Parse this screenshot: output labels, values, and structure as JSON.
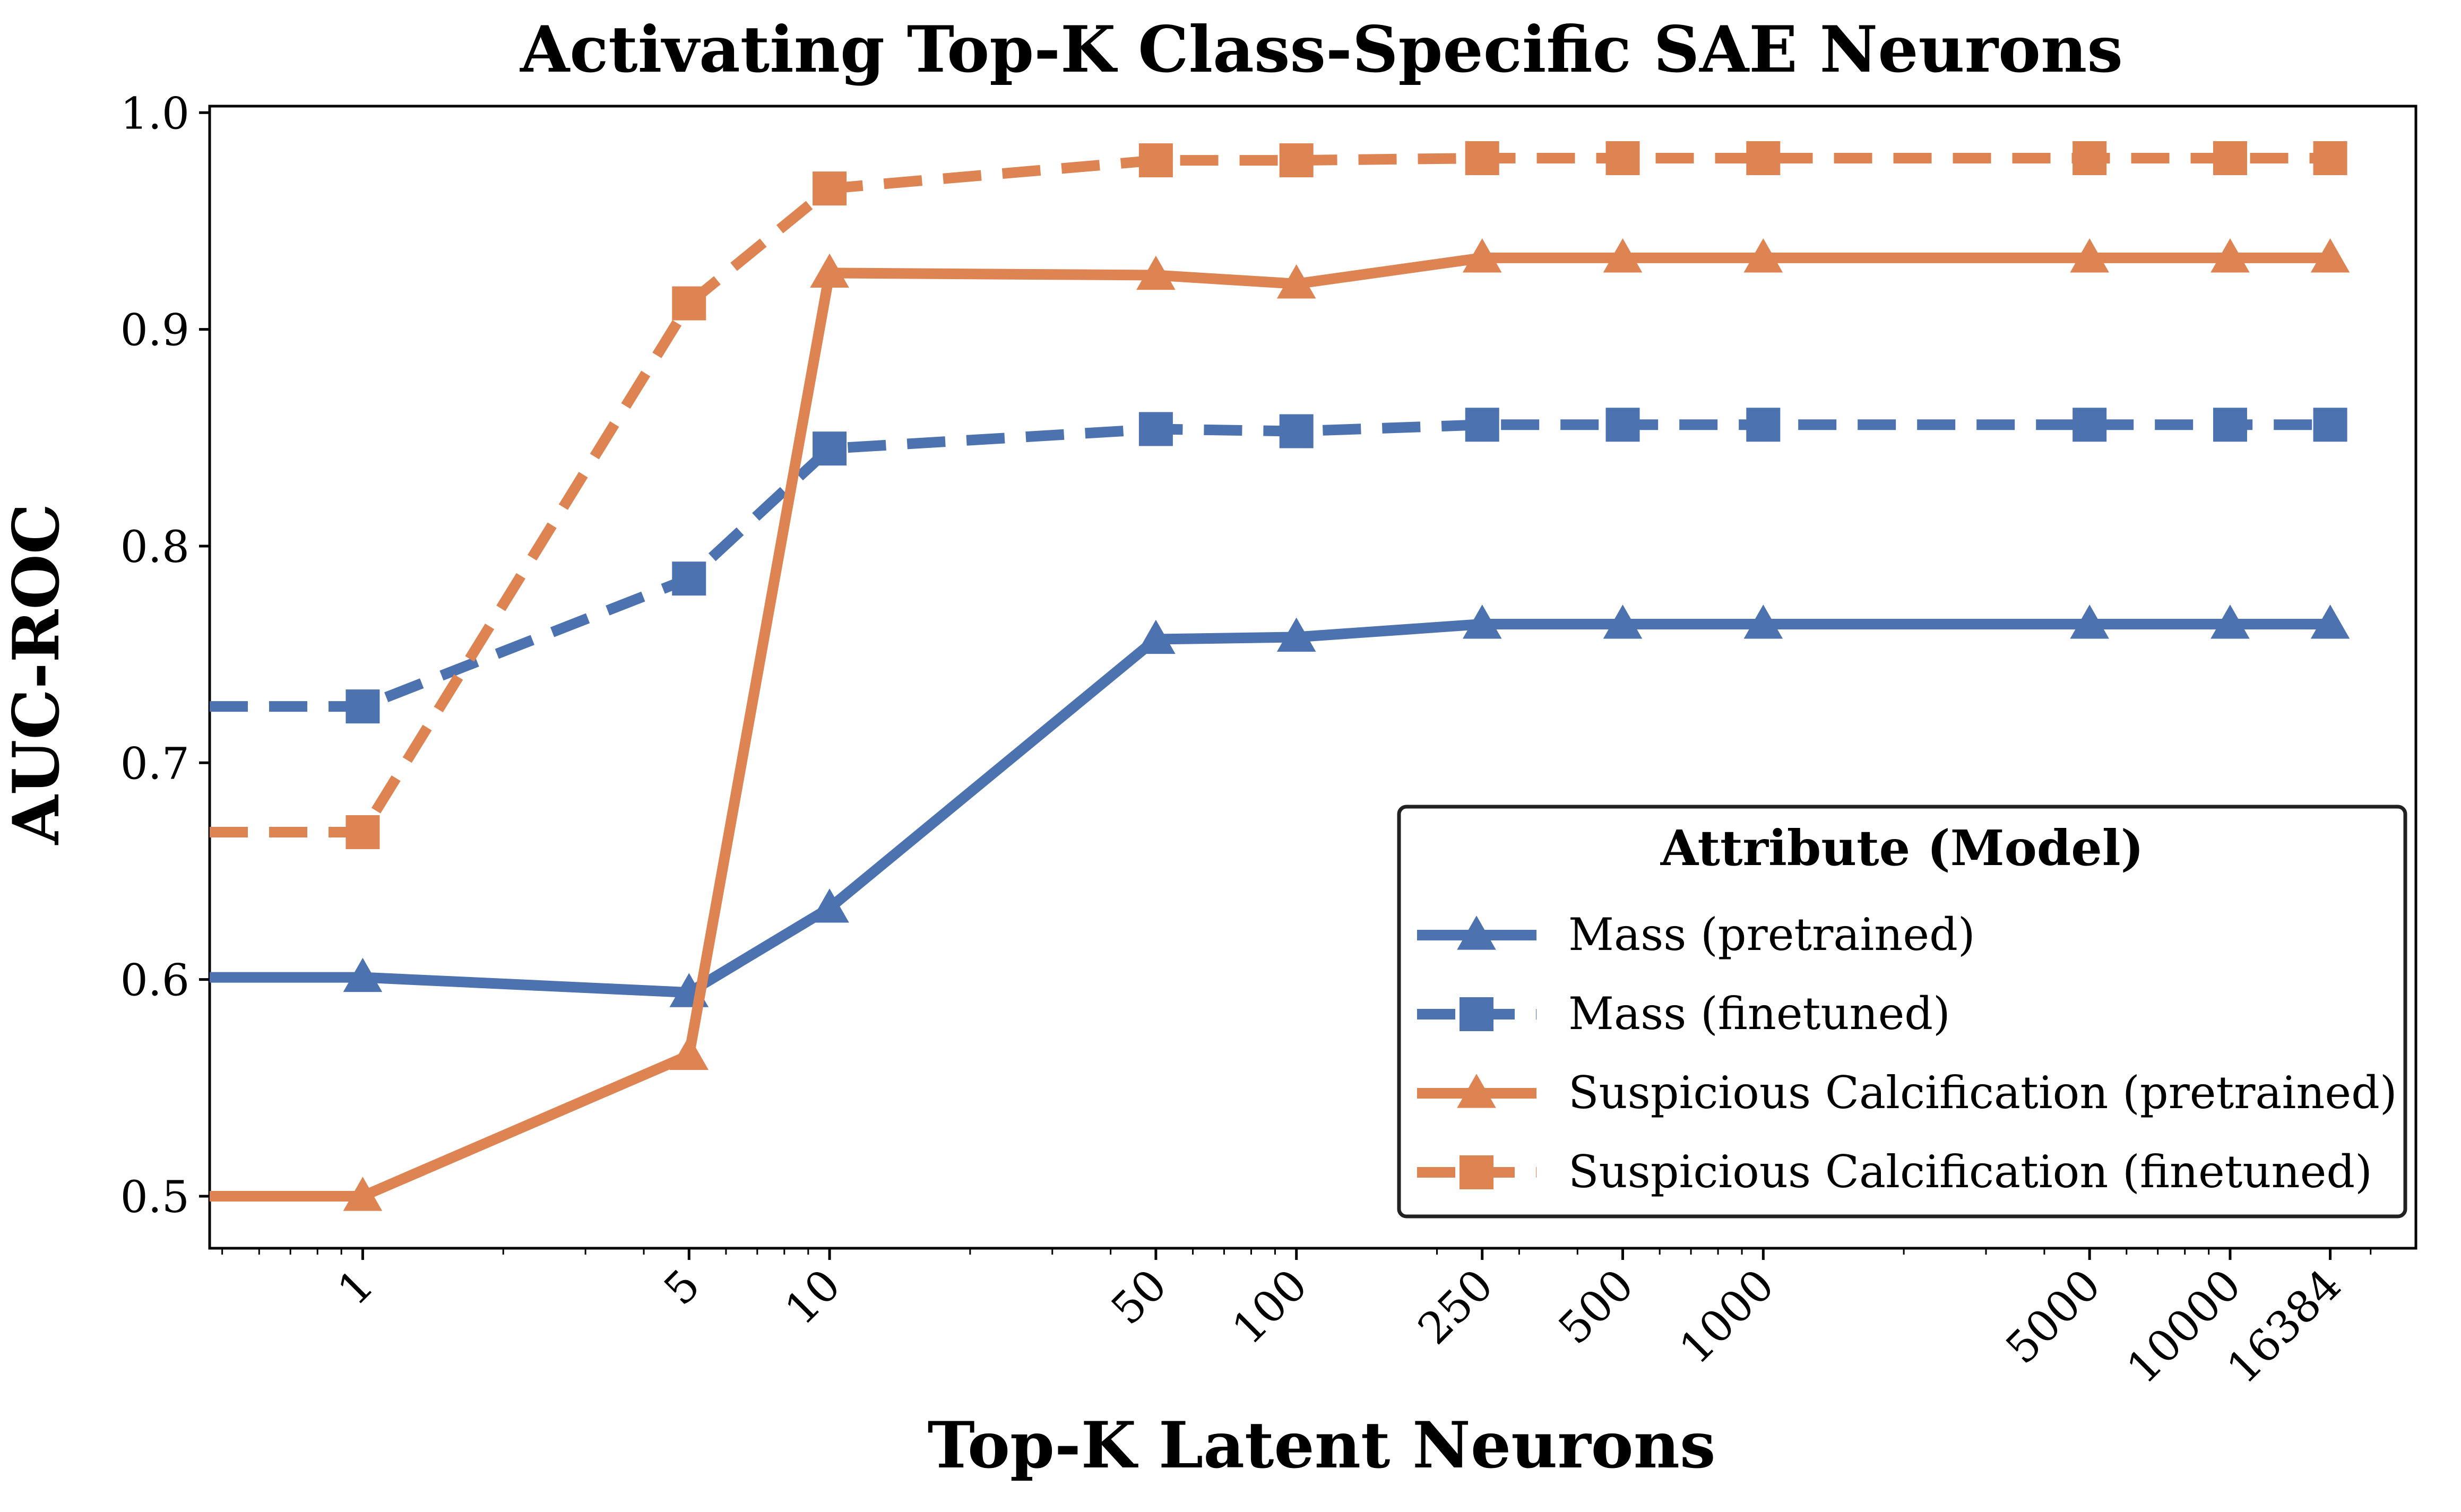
{
  "chart_data": {
    "type": "line",
    "title": "Activating Top-K Class-Specific SAE Neurons",
    "xlabel": "Top-K Latent Neurons",
    "ylabel": "AUC-ROC",
    "x_scale": "log",
    "xlim": [
      0.47,
      25000
    ],
    "ylim": [
      0.476,
      1.003
    ],
    "x": [
      0.47,
      1,
      5,
      10,
      50,
      100,
      250,
      500,
      1000,
      5000,
      10000,
      16384
    ],
    "x_tick_labels": [
      "1",
      "5",
      "10",
      "50",
      "100",
      "250",
      "500",
      "1000",
      "5000",
      "10000",
      "16384"
    ],
    "x_tick_values": [
      1,
      5,
      10,
      50,
      100,
      250,
      500,
      1000,
      5000,
      10000,
      16384
    ],
    "y_ticks": [
      0.5,
      0.6,
      0.7,
      0.8,
      0.9,
      1.0
    ],
    "y_tick_labels": [
      "0.5",
      "0.6",
      "0.7",
      "0.8",
      "0.9",
      "1.0"
    ],
    "grid": false,
    "legend": {
      "title": "Attribute (Model)",
      "position": "lower-right"
    },
    "series": [
      {
        "name": "Mass (pretrained)",
        "color": "#4c72b0",
        "linestyle": "solid",
        "marker": "triangle",
        "values": [
          0.601,
          0.601,
          0.594,
          0.633,
          0.757,
          0.758,
          0.764,
          0.764,
          0.764,
          0.764,
          0.764,
          0.764
        ]
      },
      {
        "name": "Mass (finetuned)",
        "color": "#4c72b0",
        "linestyle": "dashed",
        "marker": "square",
        "values": [
          0.726,
          0.726,
          0.785,
          0.845,
          0.854,
          0.853,
          0.856,
          0.856,
          0.856,
          0.856,
          0.856,
          0.856
        ]
      },
      {
        "name": "Suspicious Calcification (pretrained)",
        "color": "#dd8452",
        "linestyle": "solid",
        "marker": "triangle",
        "values": [
          0.5,
          0.5,
          0.565,
          0.926,
          0.925,
          0.921,
          0.933,
          0.933,
          0.933,
          0.933,
          0.933,
          0.933
        ]
      },
      {
        "name": "Suspicious Calcification (finetuned)",
        "color": "#dd8452",
        "linestyle": "dashed",
        "marker": "square",
        "values": [
          0.668,
          0.668,
          0.912,
          0.965,
          0.978,
          0.978,
          0.979,
          0.979,
          0.979,
          0.979,
          0.979,
          0.979
        ]
      }
    ]
  }
}
